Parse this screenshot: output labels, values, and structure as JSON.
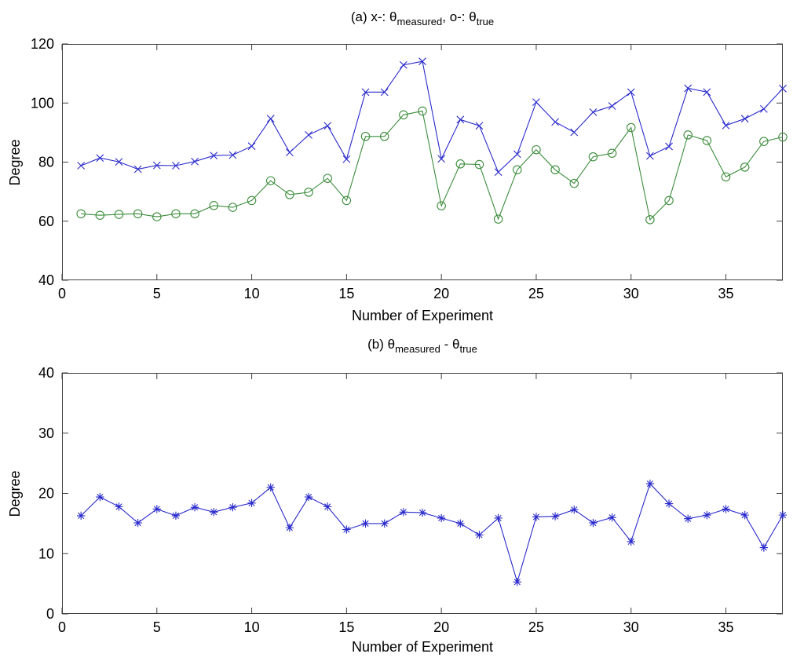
{
  "figure": {
    "background": "#ffffff",
    "axis_color": "#404040",
    "tick_label_color": "#000000",
    "measured_color": "#2a2acc",
    "true_color": "#3c8c3c"
  },
  "chart_data": [
    {
      "type": "line",
      "subplot": "a",
      "title": "(a) x-: θ_measured, o-: θ_true",
      "title_parts": [
        {
          "t": "(a)  x-: "
        },
        {
          "t": "θ"
        },
        {
          "t": "measured",
          "sub": true
        },
        {
          "t": ", o-: "
        },
        {
          "t": "θ"
        },
        {
          "t": "true",
          "sub": true
        }
      ],
      "xlabel": "Number of Experiment",
      "ylabel": "Degree",
      "xlim": [
        0,
        38
      ],
      "ylim": [
        40,
        120
      ],
      "xticks": [
        0,
        5,
        10,
        15,
        20,
        25,
        30,
        35
      ],
      "yticks": [
        40,
        60,
        80,
        100,
        120
      ],
      "grid": false,
      "legend": false,
      "x": [
        1,
        2,
        3,
        4,
        5,
        6,
        7,
        8,
        9,
        10,
        11,
        12,
        13,
        14,
        15,
        16,
        17,
        18,
        19,
        20,
        21,
        22,
        23,
        24,
        25,
        26,
        27,
        28,
        29,
        30,
        31,
        32,
        33,
        34,
        35,
        36,
        37,
        38
      ],
      "series": [
        {
          "name": "theta_measured",
          "marker": "x",
          "color": "#2a2acc",
          "values": [
            78.8,
            81.4,
            80.1,
            77.6,
            78.9,
            78.8,
            80.2,
            82.2,
            82.4,
            85.4,
            94.7,
            83.3,
            89.2,
            92.3,
            81.0,
            103.7,
            103.7,
            112.9,
            114.1,
            81.1,
            94.4,
            92.3,
            76.6,
            82.7,
            100.3,
            93.6,
            90.1,
            96.9,
            99.0,
            103.7,
            82.1,
            85.3,
            105.0,
            103.7,
            92.4,
            94.7,
            98.0,
            104.9
          ]
        },
        {
          "name": "theta_true",
          "marker": "o",
          "color": "#3c8c3c",
          "values": [
            62.5,
            62.0,
            62.3,
            62.5,
            61.5,
            62.5,
            62.5,
            65.3,
            64.7,
            67.0,
            73.7,
            69.0,
            69.8,
            74.5,
            67.0,
            88.7,
            88.7,
            96.0,
            97.3,
            65.2,
            79.4,
            79.2,
            60.7,
            77.4,
            84.2,
            77.4,
            72.8,
            81.8,
            83.0,
            91.7,
            60.5,
            67.0,
            89.2,
            87.3,
            75.0,
            78.3,
            87.0,
            88.5
          ]
        }
      ]
    },
    {
      "type": "line",
      "subplot": "b",
      "title": "(b) θ_measured - θ_true",
      "title_parts": [
        {
          "t": "(b) "
        },
        {
          "t": "θ"
        },
        {
          "t": "measured",
          "sub": true
        },
        {
          "t": " - "
        },
        {
          "t": "θ"
        },
        {
          "t": "true",
          "sub": true
        }
      ],
      "xlabel": "Number of Experiment",
      "ylabel": "Degree",
      "xlim": [
        0,
        38
      ],
      "ylim": [
        0,
        40
      ],
      "xticks": [
        0,
        5,
        10,
        15,
        20,
        25,
        30,
        35
      ],
      "yticks": [
        0,
        10,
        20,
        30,
        40
      ],
      "grid": false,
      "legend": false,
      "x": [
        1,
        2,
        3,
        4,
        5,
        6,
        7,
        8,
        9,
        10,
        11,
        12,
        13,
        14,
        15,
        16,
        17,
        18,
        19,
        20,
        21,
        22,
        23,
        24,
        25,
        26,
        27,
        28,
        29,
        30,
        31,
        32,
        33,
        34,
        35,
        36,
        37,
        38
      ],
      "series": [
        {
          "name": "theta_measured - theta_true",
          "marker": "*",
          "color": "#2a2acc",
          "values": [
            16.3,
            19.4,
            17.8,
            15.1,
            17.4,
            16.3,
            17.7,
            16.9,
            17.7,
            18.4,
            21.0,
            14.3,
            19.4,
            17.8,
            14.0,
            15.0,
            15.0,
            16.9,
            16.8,
            15.9,
            15.0,
            13.1,
            15.9,
            5.3,
            16.1,
            16.2,
            17.3,
            15.1,
            16.0,
            12.0,
            21.6,
            18.3,
            15.8,
            16.4,
            17.4,
            16.4,
            11.0,
            16.4
          ]
        }
      ]
    }
  ]
}
